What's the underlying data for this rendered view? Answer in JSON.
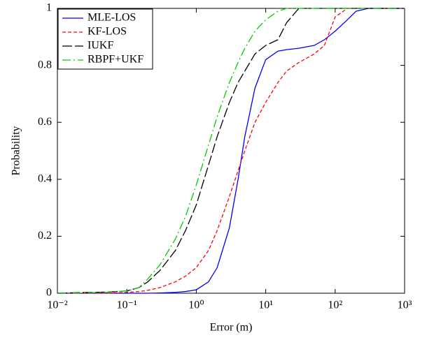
{
  "chart_data": {
    "type": "line",
    "xlabel": "Error (m)",
    "ylabel": "Probability",
    "x_scale": "log",
    "legend": "upper left",
    "x": [
      0.01,
      0.02,
      0.05,
      0.1,
      0.15,
      0.2,
      0.3,
      0.5,
      0.7,
      1,
      1.5,
      2,
      3,
      4,
      5,
      7,
      10,
      15,
      20,
      30,
      50,
      70,
      100,
      150,
      200,
      300,
      1000
    ],
    "series": [
      {
        "name": "MLE-LOS",
        "color": "#0000ff",
        "style": "solid",
        "values": [
          0,
          0,
          0,
          0,
          0,
          0,
          0.001,
          0.003,
          0.006,
          0.012,
          0.04,
          0.09,
          0.23,
          0.4,
          0.55,
          0.72,
          0.82,
          0.85,
          0.855,
          0.86,
          0.87,
          0.89,
          0.92,
          0.96,
          0.99,
          1,
          1
        ]
      },
      {
        "name": "KF-LOS",
        "color": "#ff0000",
        "style": "dashed",
        "values": [
          0,
          0,
          0,
          0.003,
          0.006,
          0.01,
          0.02,
          0.04,
          0.06,
          0.09,
          0.15,
          0.22,
          0.34,
          0.43,
          0.5,
          0.6,
          0.67,
          0.74,
          0.78,
          0.81,
          0.84,
          0.87,
          0.97,
          1,
          1,
          1,
          1
        ]
      },
      {
        "name": "IUKF",
        "color": "#000000",
        "style": "longdash",
        "values": [
          0,
          0.002,
          0.004,
          0.008,
          0.02,
          0.04,
          0.08,
          0.15,
          0.22,
          0.31,
          0.45,
          0.55,
          0.67,
          0.74,
          0.78,
          0.84,
          0.87,
          0.89,
          0.95,
          1,
          1,
          1,
          1,
          1,
          1,
          1,
          1
        ]
      },
      {
        "name": "RBPF+UKF",
        "color": "#00cc00",
        "style": "dashdot",
        "values": [
          0,
          0.001,
          0.003,
          0.008,
          0.02,
          0.05,
          0.1,
          0.19,
          0.27,
          0.38,
          0.52,
          0.62,
          0.74,
          0.81,
          0.86,
          0.92,
          0.96,
          0.99,
          1,
          1,
          1,
          1,
          1,
          1,
          1,
          1,
          1
        ]
      }
    ],
    "xlim": [
      0.01,
      1000
    ],
    "xticks": [
      {
        "value": 0.01,
        "label": "10⁻²"
      },
      {
        "value": 0.1,
        "label": "10⁻¹"
      },
      {
        "value": 1,
        "label": "10⁰"
      },
      {
        "value": 10,
        "label": "10¹"
      },
      {
        "value": 100,
        "label": "10²"
      },
      {
        "value": 1000,
        "label": "10³"
      }
    ],
    "ylim": [
      0,
      1
    ],
    "yticks": [
      0,
      0.2,
      0.4,
      0.6,
      0.8,
      1
    ]
  }
}
